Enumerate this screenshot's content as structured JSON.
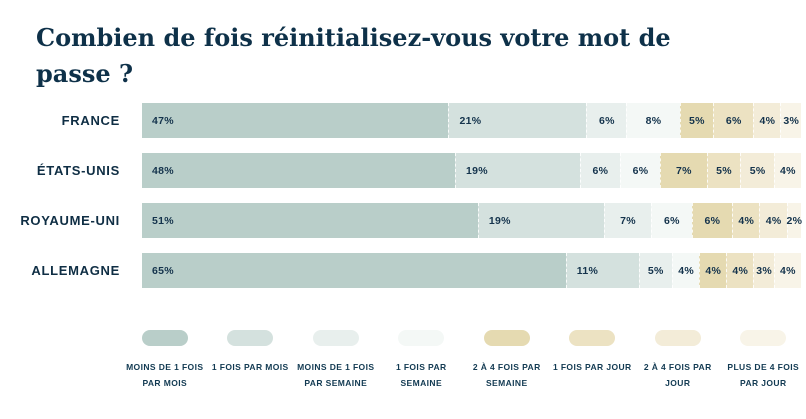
{
  "title": "Combien de fois réinitialisez-vous votre mot de passe ?",
  "colors": {
    "background": "#ffffff",
    "text": "#0f3149",
    "palette": [
      "#b9cec9",
      "#d4e1de",
      "#e8efed",
      "#f4f8f6",
      "#e5dab1",
      "#ece2c2",
      "#f3ecd8",
      "#f8f4e8"
    ]
  },
  "chart_data": {
    "type": "bar",
    "stacked": true,
    "orientation": "horizontal",
    "title": "Combien de fois réinitialisez-vous votre mot de passe ?",
    "xlim": [
      0,
      100
    ],
    "value_suffix": "%",
    "grid": false,
    "legend_position": "bottom",
    "legend": [
      "MOINS DE 1 FOIS PAR MOIS",
      "1 FOIS PAR MOIS",
      "MOINS DE 1 FOIS PAR SEMAINE",
      "1 FOIS PAR SEMAINE",
      "2 À 4 FOIS PAR SEMAINE",
      "1 FOIS PAR JOUR",
      "2 À 4 FOIS PAR JOUR",
      "PLUS DE 4 FOIS PAR JOUR"
    ],
    "palette": [
      "#b9cec9",
      "#d4e1de",
      "#e8efed",
      "#f4f8f6",
      "#e5dab1",
      "#ece2c2",
      "#f3ecd8",
      "#f8f4e8"
    ],
    "rows": [
      {
        "country": "FRANCE",
        "values": [
          47,
          21,
          6,
          8,
          5,
          6,
          4,
          3
        ]
      },
      {
        "country": "ÉTATS-UNIS",
        "values": [
          48,
          19,
          6,
          6,
          7,
          5,
          5,
          4
        ]
      },
      {
        "country": "ROYAUME-UNI",
        "values": [
          51,
          19,
          7,
          6,
          6,
          4,
          4,
          2
        ]
      },
      {
        "country": "ALLEMAGNE",
        "values": [
          65,
          11,
          5,
          4,
          4,
          4,
          3,
          4
        ]
      }
    ]
  }
}
